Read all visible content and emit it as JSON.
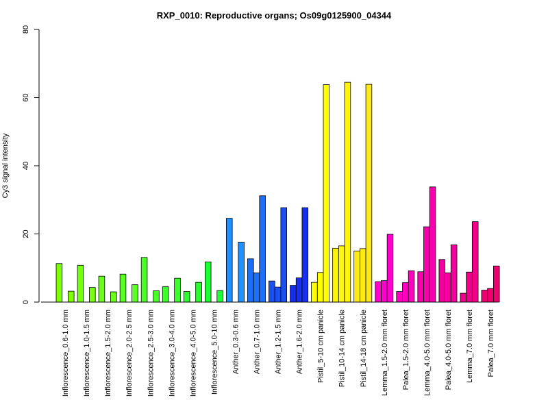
{
  "chart_data": {
    "type": "bar",
    "title": "RXP_0010: Reproductive organs; Os09g0125900_04344",
    "xlabel": "",
    "ylabel": "Cy3 signal intensity",
    "ylim": [
      0,
      80
    ],
    "yticks": [
      0,
      20,
      40,
      60,
      80
    ],
    "grid": false,
    "legend": "none",
    "groups": [
      {
        "label": "Inflorescence_0.6-1.0 mm",
        "color": "#7FFF00",
        "values": [
          11.3,
          3.2
        ]
      },
      {
        "label": "Inflorescence_1.0-1.5 mm",
        "color": "#76FF11",
        "values": [
          10.8,
          4.3
        ]
      },
      {
        "label": "Inflorescence_1.5-2.0 mm",
        "color": "#6CFF1A",
        "values": [
          7.6,
          3.0
        ]
      },
      {
        "label": "Inflorescence_2.0-2.5 mm",
        "color": "#5CFF22",
        "values": [
          8.2,
          5.1
        ]
      },
      {
        "label": "Inflorescence_2.5-3.0 mm",
        "color": "#4CFF28",
        "values": [
          13.1,
          3.3
        ]
      },
      {
        "label": "Inflorescence_3.0-4.0 mm",
        "color": "#3CFF2C",
        "values": [
          4.5,
          7.0
        ]
      },
      {
        "label": "Inflorescence_4.0-5.0 mm",
        "color": "#2CFF30",
        "values": [
          3.1,
          5.8
        ]
      },
      {
        "label": "Inflorescence_5.0-10 mm",
        "color": "#1CFF34",
        "values": [
          11.8,
          3.4
        ]
      },
      {
        "label": "Anther_0.3-0.6 mm",
        "color": "#1E90FF",
        "values": [
          24.6,
          17.6
        ]
      },
      {
        "label": "Anther_0.7-1.0 mm",
        "color": "#1C6FF8",
        "values": [
          12.7,
          8.6,
          31.2
        ]
      },
      {
        "label": "Anther_1.2-1.5 mm",
        "color": "#1A4FF0",
        "values": [
          6.2,
          4.4,
          27.7
        ]
      },
      {
        "label": "Anther_1.6-2.0 mm",
        "color": "#1830EE",
        "values": [
          4.9,
          7.1,
          27.7
        ]
      },
      {
        "label": "Pistil_5-10 cm panicle",
        "color": "#FFFF00",
        "values": [
          5.8,
          8.7,
          63.8
        ]
      },
      {
        "label": "Pistil_10-14 cm panicle",
        "color": "#FFF50A",
        "values": [
          15.8,
          16.5,
          64.5
        ]
      },
      {
        "label": "Pistil_14-18 cm panicle",
        "color": "#FFEB14",
        "values": [
          15.0,
          15.7,
          63.9
        ]
      },
      {
        "label": "Lemma_1.5-2.0 mm floret",
        "color": "#FF00CC",
        "values": [
          6.0,
          6.3,
          19.9
        ]
      },
      {
        "label": "Palea_1.5-2.0 mm floret",
        "color": "#FF00C0",
        "values": [
          3.1,
          5.7,
          9.2
        ]
      },
      {
        "label": "Lemma_4.0-5.0 mm floret",
        "color": "#F800B0",
        "values": [
          8.9,
          22.1,
          33.8
        ]
      },
      {
        "label": "Palea_4.0-5.0 mm floret",
        "color": "#F400A0",
        "values": [
          12.5,
          8.6,
          16.8
        ]
      },
      {
        "label": "Lemma_7.0 mm floret",
        "color": "#F00088",
        "values": [
          2.6,
          8.8,
          23.6
        ]
      },
      {
        "label": "Palea_7.0 mm floret",
        "color": "#EE0070",
        "values": [
          3.5,
          4.0,
          10.6
        ]
      }
    ]
  }
}
